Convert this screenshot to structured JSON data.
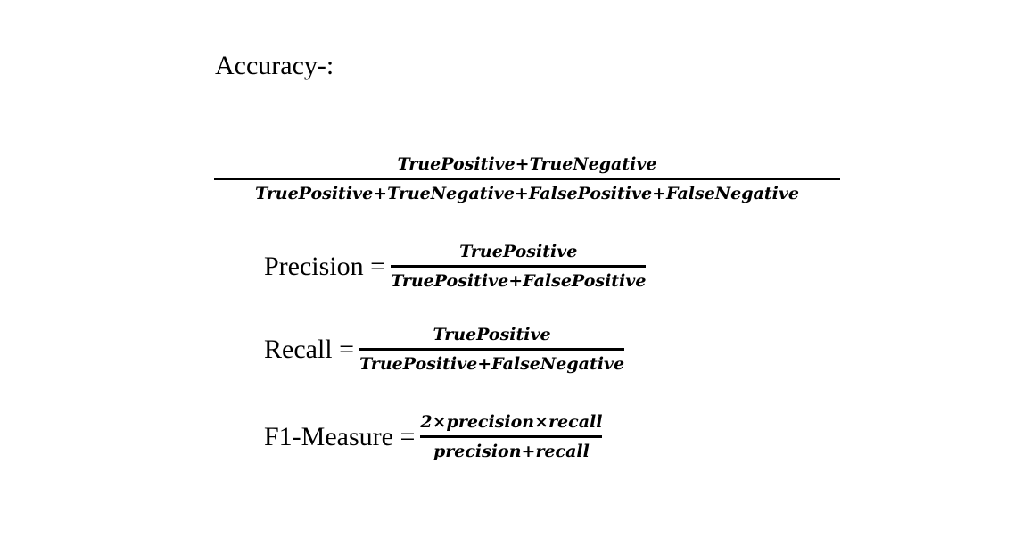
{
  "accuracy": {
    "heading": "Accuracy-:",
    "numerator": "TruePositive+TrueNegative",
    "denominator": "TruePositive+TrueNegative+FalsePositive+FalseNegative"
  },
  "precision": {
    "label": "Precision =",
    "numerator": "TruePositive",
    "denominator": "TruePositive+FalsePositive"
  },
  "recall": {
    "label": "Recall =",
    "numerator": "TruePositive",
    "denominator": "TruePositive+FalseNegative"
  },
  "f1": {
    "label": "F1-Measure =",
    "numerator": "2×precision×recall",
    "denominator": "precision+recall"
  }
}
